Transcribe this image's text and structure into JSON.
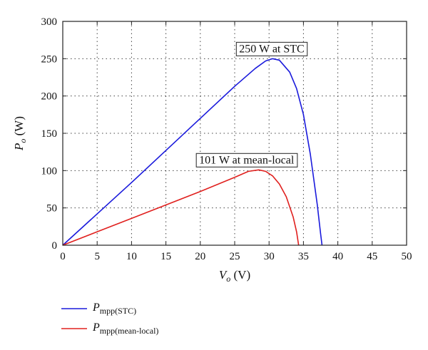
{
  "chart_data": {
    "type": "line",
    "xlabel": {
      "main": "V",
      "sub": "o",
      "unit": " (V)"
    },
    "ylabel": {
      "main": "P",
      "sub": "o",
      "unit": " (W)"
    },
    "xlim": [
      0,
      50
    ],
    "ylim": [
      0,
      300
    ],
    "xticks": [
      0,
      5,
      10,
      15,
      20,
      25,
      30,
      35,
      40,
      45,
      50
    ],
    "yticks": [
      0,
      50,
      100,
      150,
      200,
      250,
      300
    ],
    "grid": true,
    "legend_position": "bottom-left",
    "series": [
      {
        "name": {
          "main": "P",
          "sub": "mpp(STC)"
        },
        "color": "#1a1adc",
        "points": [
          [
            0,
            0
          ],
          [
            5,
            42
          ],
          [
            10,
            84
          ],
          [
            15,
            127
          ],
          [
            20,
            170
          ],
          [
            25,
            213
          ],
          [
            28,
            237
          ],
          [
            29.5,
            247
          ],
          [
            30.5,
            250
          ],
          [
            31.5,
            248
          ],
          [
            33,
            232
          ],
          [
            34,
            210
          ],
          [
            35,
            175
          ],
          [
            36,
            122
          ],
          [
            37,
            55
          ],
          [
            37.5,
            15
          ],
          [
            37.7,
            0
          ]
        ]
      },
      {
        "name": {
          "main": "P",
          "sub": "mpp(mean-local)"
        },
        "color": "#e0201e",
        "points": [
          [
            0,
            0
          ],
          [
            5,
            18
          ],
          [
            10,
            36
          ],
          [
            15,
            54
          ],
          [
            20,
            72
          ],
          [
            25,
            91
          ],
          [
            27,
            99
          ],
          [
            28.5,
            101
          ],
          [
            29.5,
            99
          ],
          [
            30.5,
            93
          ],
          [
            31.5,
            82
          ],
          [
            32.5,
            65
          ],
          [
            33.5,
            38
          ],
          [
            34,
            18
          ],
          [
            34.3,
            0
          ]
        ]
      }
    ],
    "annotations": [
      {
        "text": "250 W at STC",
        "x": 30.5,
        "y": 250
      },
      {
        "text": "101 W at mean-local",
        "x": 28.5,
        "y": 101
      }
    ]
  }
}
